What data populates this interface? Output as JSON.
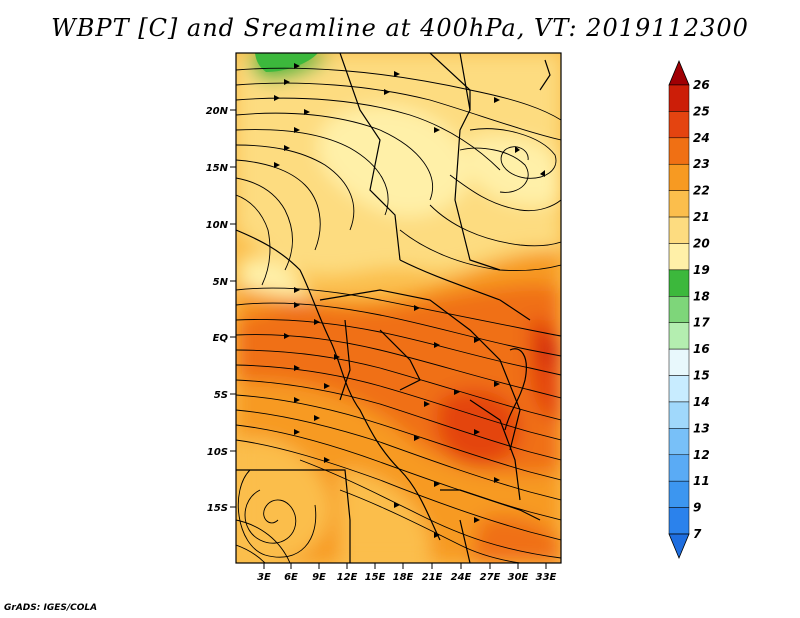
{
  "title": "WBPT [C] and Sreamline at 400hPa, VT: 2019112300",
  "credit": "GrADS: IGES/COLA",
  "map": {
    "lat_labels": [
      "20N",
      "15N",
      "10N",
      "5N",
      "EQ",
      "5S",
      "10S",
      "15S"
    ],
    "lon_labels": [
      "3E",
      "6E",
      "9E",
      "12E",
      "15E",
      "18E",
      "21E",
      "24E",
      "27E",
      "30E",
      "33E"
    ]
  },
  "colorbar": {
    "labels": [
      "7",
      "9",
      "11",
      "12",
      "13",
      "14",
      "15",
      "16",
      "17",
      "18",
      "19",
      "20",
      "21",
      "22",
      "23",
      "24",
      "25",
      "26"
    ],
    "colors": [
      "#1e6ee0",
      "#2b82ec",
      "#3c96f0",
      "#5aabf5",
      "#78c0f8",
      "#a0d8fb",
      "#c8ecff",
      "#e8f8fc",
      "#b4eeb0",
      "#7ed67a",
      "#3cb83c",
      "#fff0a8",
      "#fddc80",
      "#fbbe4c",
      "#f79a22",
      "#f07014",
      "#e44410",
      "#cc1e08",
      "#a00004"
    ]
  },
  "chart_data": {
    "type": "heatmap",
    "title": "WBPT [C] and Sreamline at 400hPa, VT: 2019112300",
    "variable": "Wet-bulb potential temperature (WBPT) with streamlines at 400hPa",
    "valid_time": "2019112300",
    "x_ticks": [
      "3E",
      "6E",
      "9E",
      "12E",
      "15E",
      "18E",
      "21E",
      "24E",
      "27E",
      "30E",
      "33E"
    ],
    "y_ticks": [
      "20N",
      "15N",
      "10N",
      "5N",
      "EQ",
      "5S",
      "10S",
      "15S"
    ],
    "color_levels": [
      7,
      9,
      11,
      12,
      13,
      14,
      15,
      16,
      17,
      18,
      19,
      20,
      21,
      22,
      23,
      24,
      25,
      26
    ]
  }
}
